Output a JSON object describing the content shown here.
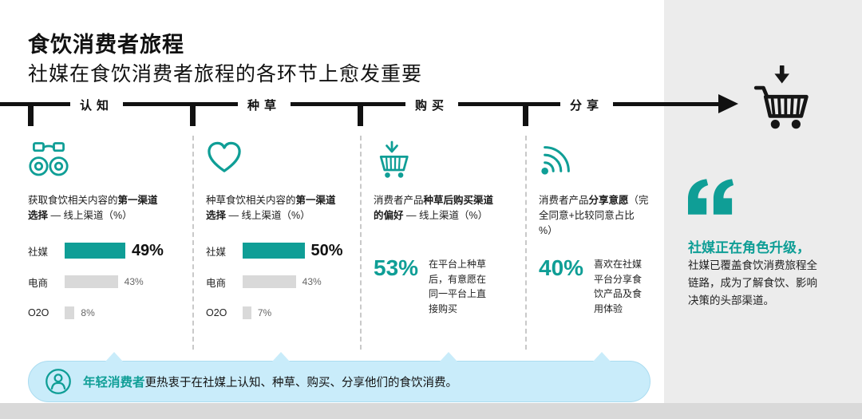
{
  "header": {
    "title": "食饮消费者旅程",
    "subtitle": "社媒在食饮消费者旅程的各环节上愈发重要"
  },
  "timeline": {
    "stages": [
      "认知",
      "种草",
      "购买",
      "分享"
    ]
  },
  "columns": [
    {
      "desc_pre": "获取食饮相关内容的",
      "desc_bold": "第一渠道选择",
      "desc_post": " — 线上渠道（%）"
    },
    {
      "desc_pre": "种草食饮相关内容的",
      "desc_bold": "第一渠道选择",
      "desc_post": " — 线上渠道（%）"
    },
    {
      "desc_pre": "消费者产品",
      "desc_bold": "种草后购买渠道的偏好",
      "desc_post": " — 线上渠道（%）"
    },
    {
      "desc_pre": "消费者产品",
      "desc_bold": "分享意愿",
      "desc_post": "（完全同意+比较同意占比 %）"
    }
  ],
  "chart_data": [
    {
      "type": "bar",
      "title": "获取食饮相关内容的第一渠道选择 — 线上渠道（%）",
      "categories": [
        "社媒",
        "电商",
        "O2O"
      ],
      "values": [
        49,
        43,
        8
      ],
      "labels": [
        "49%",
        "43%",
        "8%"
      ],
      "xlim": [
        0,
        100
      ],
      "highlight_series": "社媒"
    },
    {
      "type": "bar",
      "title": "种草食饮相关内容的第一渠道选择 — 线上渠道（%）",
      "categories": [
        "社媒",
        "电商",
        "O2O"
      ],
      "values": [
        50,
        43,
        7
      ],
      "labels": [
        "50%",
        "43%",
        "7%"
      ],
      "xlim": [
        0,
        100
      ],
      "highlight_series": "社媒"
    },
    {
      "type": "stat",
      "title": "消费者产品种草后购买渠道的偏好 — 线上渠道（%）",
      "value": 53,
      "value_label": "53%",
      "note": "在平台上种草后，有意愿在同一平台上直接购买"
    },
    {
      "type": "stat",
      "title": "消费者产品分享意愿（完全同意+比较同意占比 %）",
      "value": 40,
      "value_label": "40%",
      "note": "喜欢在社媒平台分享食饮产品及食用体验"
    }
  ],
  "insight": {
    "headline": "社媒正在角色升级，",
    "body": "社媒已覆盖食饮消费旅程全链路，成为了解食饮、影响决策的头部渠道。"
  },
  "banner": {
    "highlight": "年轻消费者",
    "text": "更热衷于在社媒上认知、种草、购买、分享他们的食饮消费。"
  },
  "colors": {
    "teal": "#0f9e96",
    "bar_gray": "#d9d9d9",
    "banner_blue": "#c9ecfa",
    "panel_gray": "#ececec",
    "footer_gray": "#d9d9d9",
    "ink": "#111111"
  }
}
